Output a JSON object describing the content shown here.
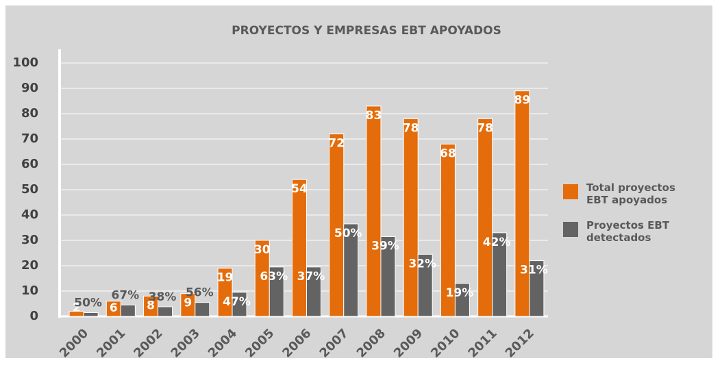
{
  "chart_data": {
    "type": "bar",
    "title": "PROYECTOS Y EMPRESAS EBT APOYADOS",
    "categories": [
      "2000",
      "2001",
      "2002",
      "2003",
      "2004",
      "2005",
      "2006",
      "2007",
      "2008",
      "2009",
      "2010",
      "2011",
      "2012"
    ],
    "series": [
      {
        "name": "Total proyectos EBT apoyados",
        "color": "#e46c0a",
        "values": [
          2,
          6,
          8,
          9,
          19,
          30,
          54,
          72,
          83,
          78,
          68,
          78,
          89
        ]
      },
      {
        "name": "Proyectos EBT detectados",
        "color": "#636363",
        "values": [
          1.5,
          4.5,
          3.8,
          5.5,
          9.5,
          19.5,
          19.5,
          36.5,
          31.5,
          24.5,
          13,
          33,
          22
        ],
        "share_labels": [
          "50%",
          "67%",
          "38%",
          "56%",
          "47%",
          "63%",
          "37%",
          "50%",
          "39%",
          "32%",
          "19%",
          "42%",
          "31%"
        ]
      }
    ],
    "ylim": [
      0,
      100
    ],
    "yticks": [
      0,
      10,
      20,
      30,
      40,
      50,
      60,
      70,
      80,
      90,
      100
    ],
    "grid": true,
    "legend": "right"
  }
}
